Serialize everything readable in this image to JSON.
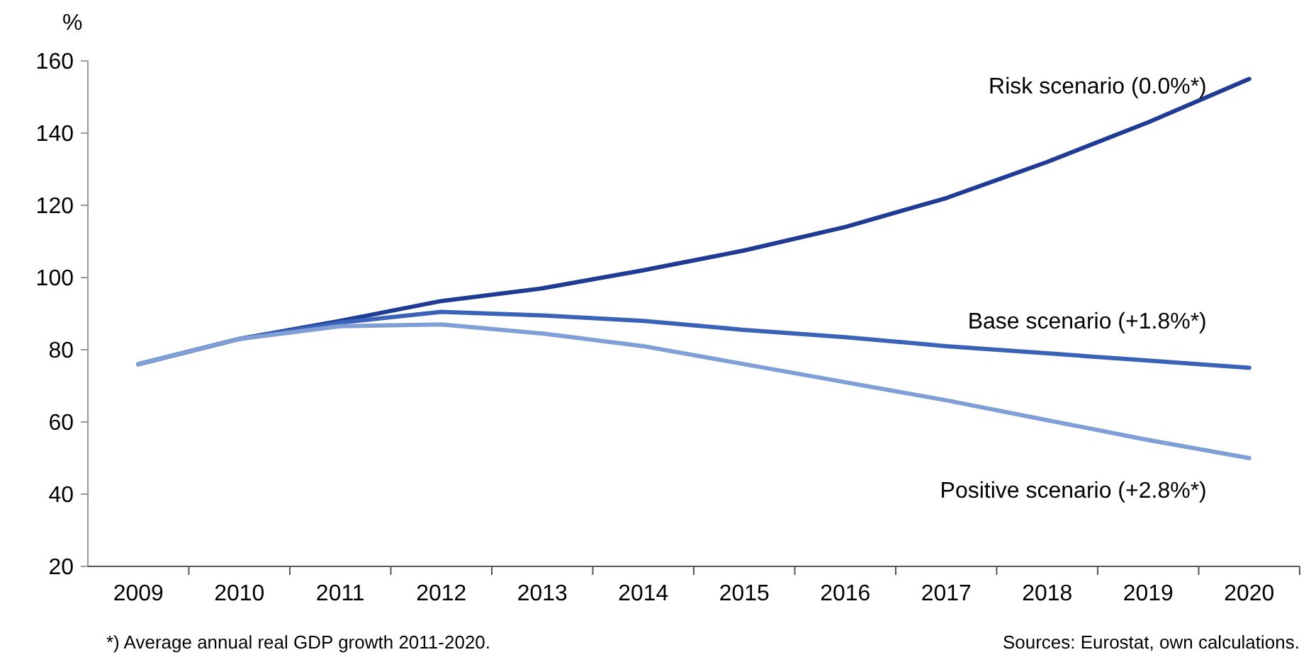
{
  "chart_data": {
    "type": "line",
    "ylabel": "%",
    "categories": [
      "2009",
      "2010",
      "2011",
      "2012",
      "2013",
      "2014",
      "2015",
      "2016",
      "2017",
      "2018",
      "2019",
      "2020"
    ],
    "series": [
      {
        "name": "Risk scenario (0.0%*)",
        "color": "#1f3b93",
        "values": [
          76,
          83,
          88,
          93.5,
          97,
          102,
          107.5,
          114,
          122,
          132,
          143,
          155
        ]
      },
      {
        "name": "Base scenario (+1.8%*)",
        "color": "#3a63b8",
        "values": [
          76,
          83,
          87.5,
          90.5,
          89.5,
          88,
          85.5,
          83.5,
          81,
          79,
          77,
          75
        ]
      },
      {
        "name": "Positive scenario (+2.8%*)",
        "color": "#7f9fd6",
        "values": [
          76,
          83,
          86.5,
          87,
          84.5,
          81,
          76,
          71,
          66,
          60.5,
          55,
          50
        ]
      }
    ],
    "ylim": [
      20,
      160
    ],
    "yticks": [
      20,
      40,
      60,
      80,
      100,
      120,
      140,
      160
    ],
    "grid": false,
    "annotations": [
      "*) Average annual real GDP growth 2011-2020.",
      "Sources: Eurostat, own calculations."
    ]
  }
}
